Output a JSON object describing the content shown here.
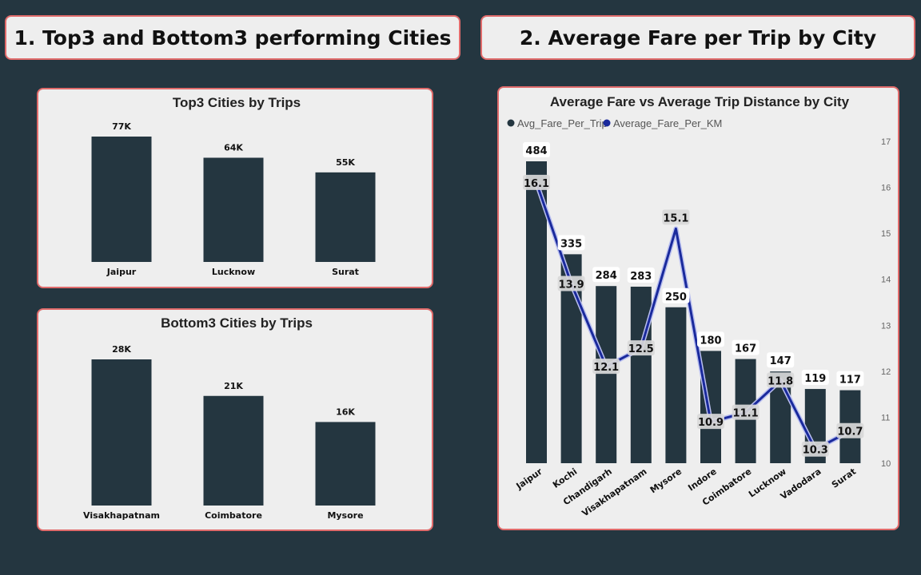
{
  "headers": {
    "left": "1. Top3 and Bottom3 performing Cities",
    "right": "2. Average Fare per Trip by City"
  },
  "colors": {
    "bar": "#243640",
    "line": "#1a2a9c",
    "line_highlight": "#b9bff0",
    "panel_border": "#e06b6b"
  },
  "chart_data": [
    {
      "type": "bar",
      "title": "Top3 Cities by Trips",
      "categories": [
        "Jaipur",
        "Lucknow",
        "Surat"
      ],
      "values": [
        77,
        64,
        55
      ],
      "value_labels": [
        "77K",
        "64K",
        "55K"
      ],
      "ylim": [
        0,
        77
      ]
    },
    {
      "type": "bar",
      "title": "Bottom3 Cities by Trips",
      "categories": [
        "Visakhapatnam",
        "Coimbatore",
        "Mysore"
      ],
      "values": [
        28,
        21,
        16
      ],
      "value_labels": [
        "28K",
        "21K",
        "16K"
      ],
      "ylim": [
        0,
        28
      ]
    },
    {
      "type": "bar",
      "title": "Average Fare vs Average Trip Distance by City",
      "categories": [
        "Jaipur",
        "Kochi",
        "Chandigarh",
        "Visakhapatnam",
        "Mysore",
        "Indore",
        "Coimbatore",
        "Lucknow",
        "Vadodara",
        "Surat"
      ],
      "series": [
        {
          "name": "Avg_Fare_Per_Trip",
          "type": "bar",
          "values": [
            484,
            335,
            284,
            283,
            250,
            180,
            167,
            147,
            119,
            117
          ]
        },
        {
          "name": "Average_Fare_Per_KM",
          "type": "line",
          "axis": "right",
          "values": [
            16.1,
            13.9,
            12.1,
            12.5,
            15.1,
            10.9,
            11.1,
            11.8,
            10.3,
            10.7
          ]
        }
      ],
      "y_left_lim": [
        0,
        484
      ],
      "y_right_lim": [
        10,
        17
      ],
      "y_right_ticks": [
        "10",
        "11",
        "12",
        "13",
        "14",
        "15",
        "16",
        "17"
      ],
      "legend": "top-left",
      "grid": false
    }
  ]
}
